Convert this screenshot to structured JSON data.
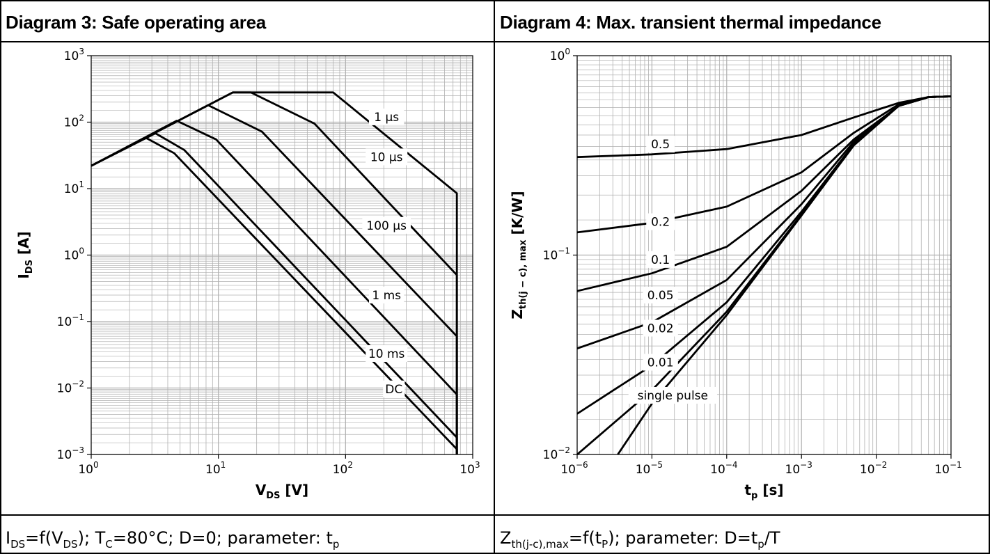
{
  "panels": [
    {
      "title": "Diagram 3: Safe operating area",
      "caption": {
        "i_main": "I",
        "i_sub": "DS",
        "eq": "=f(V",
        "v_sub": "DS",
        "mid": "); T",
        "t_sub": "C",
        "rest": "=80°C; D=0; parameter: t",
        "p_sub": "p"
      }
    },
    {
      "title": "Diagram 4: Max. transient thermal impedance",
      "caption": {
        "z_main": "Z",
        "z_sub": "th(j-c),max",
        "eq": "=f(t",
        "t_sub": "P",
        "mid": "); parameter: D=t",
        "p_sub": "p",
        "rest": "/T"
      }
    }
  ],
  "colors": {
    "grid": "#b0b0b0",
    "line": "#000000",
    "border": "#000000"
  },
  "chart_data": [
    {
      "type": "line",
      "title": "Diagram 3: Safe operating area",
      "xlabel_main": "V",
      "xlabel_sub": "DS",
      "xlabel_unit": " [V]",
      "ylabel_main": "I",
      "ylabel_sub": "DS",
      "ylabel_unit": " [A]",
      "xscale": "log",
      "yscale": "log",
      "xlim": [
        1,
        1000
      ],
      "ylim": [
        0.001,
        1000
      ],
      "grid": true,
      "x_ticks": [
        {
          "base": "10",
          "exp": "0"
        },
        {
          "base": "10",
          "exp": "1"
        },
        {
          "base": "10",
          "exp": "2"
        },
        {
          "base": "10",
          "exp": "3"
        }
      ],
      "y_ticks": [
        {
          "base": "10",
          "exp": "−3"
        },
        {
          "base": "10",
          "exp": "−2"
        },
        {
          "base": "10",
          "exp": "−1"
        },
        {
          "base": "10",
          "exp": "0"
        },
        {
          "base": "10",
          "exp": "1"
        },
        {
          "base": "10",
          "exp": "2"
        },
        {
          "base": "10",
          "exp": "3"
        }
      ],
      "series": [
        {
          "name": "1 µs",
          "x": [
            1,
            13,
            80,
            750,
            750
          ],
          "y": [
            22,
            280,
            280,
            8.5,
            0.001
          ],
          "label_at": [
            210,
            120
          ]
        },
        {
          "name": "10 µs",
          "x": [
            1,
            13,
            18,
            57,
            750,
            750
          ],
          "y": [
            22,
            280,
            280,
            95,
            0.5,
            0.001
          ],
          "label_at": [
            210,
            30
          ]
        },
        {
          "name": "100 µs",
          "x": [
            1,
            8.3,
            22,
            750,
            750
          ],
          "y": [
            22,
            180,
            72,
            0.06,
            0.001
          ],
          "label_at": [
            210,
            2.8
          ]
        },
        {
          "name": "1 ms",
          "x": [
            1,
            4.7,
            9.6,
            750,
            750
          ],
          "y": [
            22,
            105,
            55,
            0.008,
            0.001
          ],
          "label_at": [
            210,
            0.25
          ]
        },
        {
          "name": "10 ms",
          "x": [
            1,
            3.2,
            5.4,
            750,
            750
          ],
          "y": [
            22,
            68,
            38,
            0.0018,
            0.001
          ],
          "label_at": [
            210,
            0.033
          ]
        },
        {
          "name": "DC",
          "x": [
            1,
            2.7,
            4.5,
            750,
            750
          ],
          "y": [
            22,
            58,
            34,
            0.0012,
            0.001
          ],
          "label_at": [
            240,
            0.0097
          ]
        }
      ]
    },
    {
      "type": "line",
      "title": "Diagram 4: Max. transient thermal impedance",
      "xlabel_main": "t",
      "xlabel_sub": "p",
      "xlabel_unit": " [s]",
      "ylabel_main": "Z",
      "ylabel_sub": "th(j − c), max",
      "ylabel_unit": " [K/W]",
      "xscale": "log",
      "yscale": "log",
      "xlim": [
        1e-06,
        0.1
      ],
      "ylim": [
        0.01,
        1
      ],
      "grid": true,
      "x_ticks": [
        {
          "base": "10",
          "exp": "−6"
        },
        {
          "base": "10",
          "exp": "−5"
        },
        {
          "base": "10",
          "exp": "−4"
        },
        {
          "base": "10",
          "exp": "−3"
        },
        {
          "base": "10",
          "exp": "−2"
        },
        {
          "base": "10",
          "exp": "−1"
        }
      ],
      "y_ticks": [
        {
          "base": "10",
          "exp": "−2"
        },
        {
          "base": "10",
          "exp": "−1"
        },
        {
          "base": "10",
          "exp": "0"
        }
      ],
      "series": [
        {
          "name": "0.5",
          "x": [
            1e-06,
            1e-05,
            0.0001,
            0.001,
            0.005,
            0.02,
            0.05,
            0.1
          ],
          "y": [
            0.31,
            0.32,
            0.34,
            0.4,
            0.49,
            0.58,
            0.62,
            0.625
          ],
          "label_at": [
            1.3e-05,
            0.36
          ]
        },
        {
          "name": "0.2",
          "x": [
            1e-06,
            1e-05,
            0.0001,
            0.001,
            0.005,
            0.02,
            0.05,
            0.1
          ],
          "y": [
            0.13,
            0.145,
            0.175,
            0.26,
            0.41,
            0.57,
            0.62,
            0.625
          ],
          "label_at": [
            1.3e-05,
            0.147
          ]
        },
        {
          "name": "0.1",
          "x": [
            1e-06,
            1e-05,
            0.0001,
            0.001,
            0.005,
            0.02,
            0.05,
            0.1
          ],
          "y": [
            0.066,
            0.081,
            0.11,
            0.21,
            0.38,
            0.56,
            0.62,
            0.625
          ],
          "label_at": [
            1.3e-05,
            0.095
          ]
        },
        {
          "name": "0.05",
          "x": [
            1e-06,
            1e-05,
            0.0001,
            0.001,
            0.005,
            0.02,
            0.05,
            0.1
          ],
          "y": [
            0.034,
            0.046,
            0.075,
            0.18,
            0.37,
            0.56,
            0.62,
            0.625
          ],
          "label_at": [
            1.3e-05,
            0.063
          ]
        },
        {
          "name": "0.02",
          "x": [
            1e-06,
            1e-05,
            0.0001,
            0.001,
            0.005,
            0.02,
            0.05,
            0.1
          ],
          "y": [
            0.016,
            0.028,
            0.058,
            0.165,
            0.36,
            0.56,
            0.62,
            0.625
          ],
          "label_at": [
            1.3e-05,
            0.043
          ]
        },
        {
          "name": "0.01",
          "x": [
            1e-06,
            1e-05,
            0.0001,
            0.001,
            0.005,
            0.02,
            0.05,
            0.1
          ],
          "y": [
            0.01,
            0.021,
            0.052,
            0.16,
            0.36,
            0.56,
            0.62,
            0.625
          ],
          "label_at": [
            1.3e-05,
            0.029
          ]
        },
        {
          "name": "single pulse",
          "x": [
            3.5e-06,
            1e-05,
            0.0001,
            0.001,
            0.005,
            0.02,
            0.05,
            0.1
          ],
          "y": [
            0.01,
            0.018,
            0.05,
            0.158,
            0.355,
            0.56,
            0.62,
            0.625
          ],
          "label_at": [
            1.9e-05,
            0.0198
          ]
        }
      ]
    }
  ]
}
